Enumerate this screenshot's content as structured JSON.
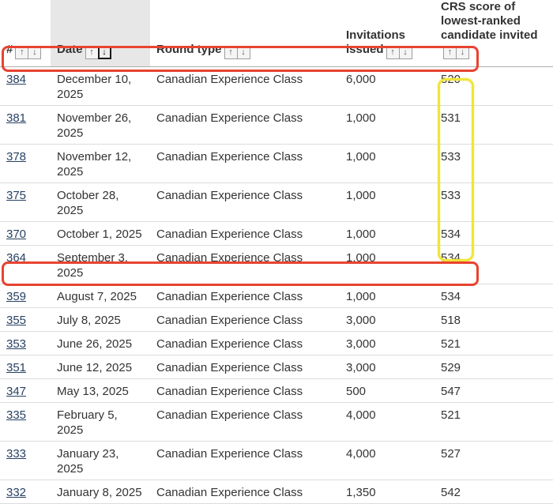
{
  "colors": {
    "highlight_red": "#e84330",
    "highlight_yellow": "#f0e53c",
    "link": "#284162",
    "sorted_column_shade": "#e7e7e7",
    "row_border": "#dcdcdc",
    "header_border": "#adadad",
    "text": "#333333"
  },
  "icons": {
    "sort_ascending": "↑",
    "sort_descending": "↓"
  },
  "header": {
    "number_label": "#",
    "date_label": "Date",
    "round_type_label": "Round type",
    "invitations_label": "Invitations issued",
    "crs_label": "CRS score of lowest-ranked candidate invited",
    "sorted_column": "Date",
    "sort_direction": "descending"
  },
  "rows": [
    {
      "num": "384",
      "date": "December 10,\n2025",
      "round_type": "Canadian Experience Class",
      "invitations": "6,000",
      "crs": "520"
    },
    {
      "num": "381",
      "date": "November 26,\n2025",
      "round_type": "Canadian Experience Class",
      "invitations": "1,000",
      "crs": "531"
    },
    {
      "num": "378",
      "date": "November 12,\n2025",
      "round_type": "Canadian Experience Class",
      "invitations": "1,000",
      "crs": "533"
    },
    {
      "num": "375",
      "date": "October 28, 2025",
      "round_type": "Canadian Experience Class",
      "invitations": "1,000",
      "crs": "533"
    },
    {
      "num": "370",
      "date": "October 1, 2025",
      "round_type": "Canadian Experience Class",
      "invitations": "1,000",
      "crs": "534"
    },
    {
      "num": "364",
      "date": "September 3,\n2025",
      "round_type": "Canadian Experience Class",
      "invitations": "1,000",
      "crs": "534"
    },
    {
      "num": "359",
      "date": "August 7, 2025",
      "round_type": "Canadian Experience Class",
      "invitations": "1,000",
      "crs": "534"
    },
    {
      "num": "355",
      "date": "July 8, 2025",
      "round_type": "Canadian Experience Class",
      "invitations": "3,000",
      "crs": "518"
    },
    {
      "num": "353",
      "date": "June 26, 2025",
      "round_type": "Canadian Experience Class",
      "invitations": "3,000",
      "crs": "521"
    },
    {
      "num": "351",
      "date": "June 12, 2025",
      "round_type": "Canadian Experience Class",
      "invitations": "3,000",
      "crs": "529"
    },
    {
      "num": "347",
      "date": "May 13, 2025",
      "round_type": "Canadian Experience Class",
      "invitations": "500",
      "crs": "547"
    },
    {
      "num": "335",
      "date": "February 5, 2025",
      "round_type": "Canadian Experience Class",
      "invitations": "4,000",
      "crs": "521"
    },
    {
      "num": "333",
      "date": "January 23, 2025",
      "round_type": "Canadian Experience Class",
      "invitations": "4,000",
      "crs": "527"
    },
    {
      "num": "332",
      "date": "January 8, 2025",
      "round_type": "Canadian Experience Class",
      "invitations": "1,350",
      "crs": "542"
    }
  ],
  "annotations": {
    "red_boxed_round_numbers": [
      "384",
      "355"
    ],
    "yellow_boxed_crs_values": [
      "531",
      "533",
      "533",
      "534",
      "534",
      "534"
    ]
  }
}
